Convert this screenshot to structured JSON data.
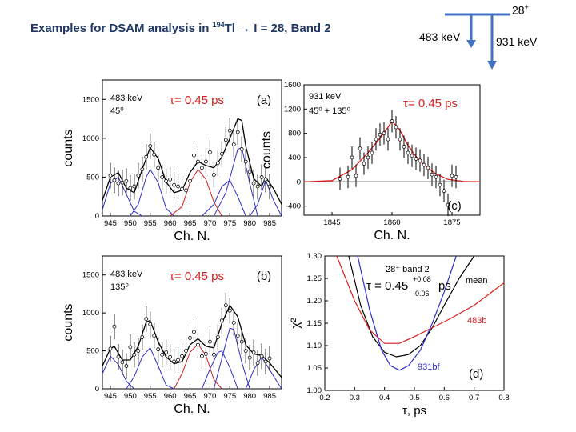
{
  "slide": {
    "title_prefix": "Examples for DSAM analysis in ",
    "title_mass": "194",
    "title_element": "Tl",
    "title_arrow": "→",
    "title_suffix": " I = 28, Band 2",
    "level_spin": "28",
    "level_parity": "+",
    "transition_1": "483 keV",
    "transition_2": "931 keV",
    "colors": {
      "title": "#1f3864",
      "level_scheme": "#4472c4"
    }
  },
  "chart_data": [
    {
      "id": "a",
      "type": "line",
      "panel_label": "(a)",
      "energy_label": "483 keV",
      "angle_label": "45⁰",
      "tau_label": "τ= 0.45 ps",
      "xlabel": "Ch. N.",
      "ylabel": "counts",
      "xlim": [
        943,
        988
      ],
      "ylim": [
        0,
        1750
      ],
      "xticks": [
        945,
        950,
        955,
        960,
        965,
        970,
        975,
        980,
        985
      ],
      "yticks": [
        0,
        500,
        1000,
        1500
      ],
      "points": [
        [
          945,
          520
        ],
        [
          946,
          460
        ],
        [
          947,
          420
        ],
        [
          948,
          430
        ],
        [
          949,
          450
        ],
        [
          950,
          360
        ],
        [
          951,
          380
        ],
        [
          952,
          520
        ],
        [
          953,
          600
        ],
        [
          954,
          760
        ],
        [
          955,
          900
        ],
        [
          956,
          790
        ],
        [
          957,
          620
        ],
        [
          958,
          500
        ],
        [
          959,
          450
        ],
        [
          960,
          470
        ],
        [
          961,
          400
        ],
        [
          962,
          380
        ],
        [
          963,
          350
        ],
        [
          964,
          330
        ],
        [
          965,
          450
        ],
        [
          966,
          780
        ],
        [
          967,
          700
        ],
        [
          968,
          620
        ],
        [
          969,
          700
        ],
        [
          970,
          820
        ],
        [
          971,
          530
        ],
        [
          972,
          680
        ],
        [
          973,
          800
        ],
        [
          974,
          980
        ],
        [
          975,
          1100
        ],
        [
          976,
          920
        ],
        [
          977,
          1080
        ],
        [
          978,
          860
        ],
        [
          979,
          700
        ],
        [
          980,
          570
        ],
        [
          981,
          420
        ],
        [
          982,
          380
        ],
        [
          983,
          500
        ],
        [
          984,
          470
        ],
        [
          985,
          380
        ]
      ],
      "fit_total": [
        [
          943,
          200
        ],
        [
          945,
          500
        ],
        [
          947,
          560
        ],
        [
          949,
          360
        ],
        [
          951,
          300
        ],
        [
          953,
          600
        ],
        [
          955,
          880
        ],
        [
          957,
          740
        ],
        [
          959,
          440
        ],
        [
          961,
          300
        ],
        [
          963,
          330
        ],
        [
          965,
          560
        ],
        [
          967,
          700
        ],
        [
          969,
          650
        ],
        [
          971,
          620
        ],
        [
          973,
          760
        ],
        [
          975,
          1000
        ],
        [
          977,
          1250
        ],
        [
          978,
          1230
        ],
        [
          979,
          900
        ],
        [
          981,
          480
        ],
        [
          983,
          380
        ],
        [
          984,
          500
        ],
        [
          986,
          350
        ],
        [
          988,
          150
        ]
      ],
      "fit_components": [
        {
          "color": "#2e2ec8",
          "points": [
            [
              943,
              80
            ],
            [
              945,
              420
            ],
            [
              947,
              500
            ],
            [
              949,
              280
            ],
            [
              951,
              60
            ],
            [
              953,
              0
            ]
          ]
        },
        {
          "color": "#2e2ec8",
          "points": [
            [
              950,
              0
            ],
            [
              952,
              150
            ],
            [
              954,
              500
            ],
            [
              955,
              600
            ],
            [
              957,
              430
            ],
            [
              959,
              100
            ],
            [
              961,
              0
            ]
          ]
        },
        {
          "color": "#d81e1e",
          "points": [
            [
              960,
              0
            ],
            [
              963,
              120
            ],
            [
              965,
              430
            ],
            [
              967,
              600
            ],
            [
              969,
              470
            ],
            [
              971,
              180
            ],
            [
              973,
              0
            ]
          ]
        },
        {
          "color": "#2e2ec8",
          "points": [
            [
              968,
              0
            ],
            [
              971,
              150
            ],
            [
              973,
              380
            ],
            [
              975,
              460
            ],
            [
              977,
              250
            ],
            [
              979,
              0
            ]
          ]
        },
        {
          "color": "#2e2ec8",
          "points": [
            [
              971,
              0
            ],
            [
              974,
              300
            ],
            [
              977,
              860
            ],
            [
              978,
              880
            ],
            [
              980,
              420
            ],
            [
              982,
              0
            ]
          ]
        },
        {
          "color": "#2e2ec8",
          "points": [
            [
              980,
              0
            ],
            [
              982,
              150
            ],
            [
              984,
              460
            ],
            [
              986,
              200
            ],
            [
              988,
              0
            ]
          ]
        }
      ]
    },
    {
      "id": "c",
      "type": "line",
      "panel_label": "(c)",
      "energy_label": "931 keV",
      "angle_label": "45⁰ + 135⁰",
      "tau_label": "τ= 0.45 ps",
      "xlabel": "Ch. N.",
      "ylabel": "counts",
      "xlim": [
        1838,
        1882
      ],
      "ylim": [
        -550,
        1600
      ],
      "xticks": [
        1845,
        1860,
        1875
      ],
      "yticks": [
        -400,
        0,
        400,
        800,
        1200,
        1600
      ],
      "points": [
        [
          1847,
          50
        ],
        [
          1849,
          80
        ],
        [
          1850,
          400
        ],
        [
          1851,
          100
        ],
        [
          1852,
          550
        ],
        [
          1853,
          300
        ],
        [
          1854,
          400
        ],
        [
          1855,
          480
        ],
        [
          1856,
          700
        ],
        [
          1857,
          780
        ],
        [
          1858,
          800
        ],
        [
          1859,
          700
        ],
        [
          1860,
          1000
        ],
        [
          1861,
          900
        ],
        [
          1862,
          700
        ],
        [
          1863,
          580
        ],
        [
          1864,
          480
        ],
        [
          1865,
          430
        ],
        [
          1866,
          380
        ],
        [
          1867,
          350
        ],
        [
          1868,
          280
        ],
        [
          1869,
          230
        ],
        [
          1870,
          120
        ],
        [
          1871,
          80
        ],
        [
          1872,
          -50
        ],
        [
          1873,
          -150
        ],
        [
          1874,
          -380
        ],
        [
          1875,
          100
        ],
        [
          1876,
          80
        ]
      ],
      "fit_total": [
        [
          1838,
          0
        ],
        [
          1845,
          20
        ],
        [
          1850,
          200
        ],
        [
          1854,
          480
        ],
        [
          1857,
          720
        ],
        [
          1859,
          900
        ],
        [
          1860,
          1000
        ],
        [
          1862,
          850
        ],
        [
          1864,
          600
        ],
        [
          1866,
          420
        ],
        [
          1868,
          280
        ],
        [
          1871,
          130
        ],
        [
          1874,
          40
        ],
        [
          1878,
          5
        ],
        [
          1882,
          0
        ]
      ],
      "fit_components": []
    },
    {
      "id": "b",
      "type": "line",
      "panel_label": "(b)",
      "energy_label": "483 keV",
      "angle_label": "135⁰",
      "tau_label": "τ= 0.45 ps",
      "xlabel": "Ch. N.",
      "ylabel": "counts",
      "xlim": [
        943,
        988
      ],
      "ylim": [
        0,
        1750
      ],
      "xticks": [
        945,
        950,
        955,
        960,
        965,
        970,
        975,
        980,
        985
      ],
      "yticks": [
        0,
        500,
        1000,
        1500
      ],
      "points": [
        [
          945,
          530
        ],
        [
          946,
          820
        ],
        [
          947,
          420
        ],
        [
          948,
          350
        ],
        [
          949,
          300
        ],
        [
          950,
          550
        ],
        [
          951,
          450
        ],
        [
          952,
          500
        ],
        [
          953,
          680
        ],
        [
          954,
          920
        ],
        [
          955,
          850
        ],
        [
          956,
          700
        ],
        [
          957,
          520
        ],
        [
          958,
          450
        ],
        [
          959,
          480
        ],
        [
          960,
          420
        ],
        [
          961,
          360
        ],
        [
          962,
          380
        ],
        [
          963,
          430
        ],
        [
          964,
          500
        ],
        [
          965,
          670
        ],
        [
          966,
          750
        ],
        [
          967,
          580
        ],
        [
          968,
          430
        ],
        [
          969,
          460
        ],
        [
          970,
          620
        ],
        [
          971,
          450
        ],
        [
          972,
          680
        ],
        [
          973,
          900
        ],
        [
          974,
          1100
        ],
        [
          975,
          1030
        ],
        [
          976,
          870
        ],
        [
          977,
          700
        ],
        [
          978,
          620
        ],
        [
          979,
          500
        ],
        [
          980,
          410
        ],
        [
          981,
          480
        ],
        [
          982,
          340
        ],
        [
          983,
          430
        ],
        [
          984,
          360
        ],
        [
          985,
          400
        ]
      ],
      "fit_total": [
        [
          943,
          300
        ],
        [
          945,
          530
        ],
        [
          946,
          560
        ],
        [
          948,
          380
        ],
        [
          950,
          380
        ],
        [
          952,
          560
        ],
        [
          954,
          880
        ],
        [
          955,
          900
        ],
        [
          957,
          620
        ],
        [
          959,
          420
        ],
        [
          961,
          330
        ],
        [
          963,
          360
        ],
        [
          965,
          580
        ],
        [
          967,
          660
        ],
        [
          969,
          560
        ],
        [
          971,
          540
        ],
        [
          973,
          860
        ],
        [
          975,
          1100
        ],
        [
          977,
          950
        ],
        [
          979,
          580
        ],
        [
          981,
          460
        ],
        [
          983,
          440
        ],
        [
          985,
          340
        ],
        [
          988,
          150
        ]
      ],
      "fit_components": [
        {
          "color": "#2e2ec8",
          "points": [
            [
              943,
              200
            ],
            [
              945,
              430
            ],
            [
              947,
              320
            ],
            [
              949,
              100
            ],
            [
              951,
              0
            ]
          ]
        },
        {
          "color": "#2e2ec8",
          "points": [
            [
              949,
              0
            ],
            [
              951,
              160
            ],
            [
              953,
              420
            ],
            [
              955,
              540
            ],
            [
              957,
              300
            ],
            [
              959,
              50
            ],
            [
              961,
              0
            ]
          ]
        },
        {
          "color": "#d81e1e",
          "points": [
            [
              961,
              0
            ],
            [
              963,
              200
            ],
            [
              965,
              480
            ],
            [
              967,
              590
            ],
            [
              969,
              440
            ],
            [
              971,
              120
            ],
            [
              973,
              0
            ]
          ]
        },
        {
          "color": "#2e2ec8",
          "points": [
            [
              968,
              0
            ],
            [
              970,
              260
            ],
            [
              972,
              480
            ],
            [
              973,
              500
            ],
            [
              975,
              280
            ],
            [
              977,
              0
            ]
          ]
        },
        {
          "color": "#2e2ec8",
          "points": [
            [
              971,
              0
            ],
            [
              973,
              400
            ],
            [
              975,
              800
            ],
            [
              976,
              780
            ],
            [
              978,
              350
            ],
            [
              980,
              0
            ]
          ]
        },
        {
          "color": "#2e2ec8",
          "points": [
            [
              979,
              0
            ],
            [
              981,
              250
            ],
            [
              983,
              420
            ],
            [
              985,
              250
            ],
            [
              988,
              0
            ]
          ]
        }
      ]
    },
    {
      "id": "d",
      "type": "line",
      "panel_label": "(d)",
      "title_lines": [
        "28⁺ band 2",
        "τ = 0.45",
        "+0.08",
        "-0.06",
        "ps"
      ],
      "xlabel": "τ, ps",
      "ylabel": "χ²",
      "xlim": [
        0.2,
        0.8
      ],
      "ylim": [
        1.0,
        1.3
      ],
      "xticks": [
        0.2,
        0.3,
        0.4,
        0.5,
        0.6,
        0.7,
        0.8
      ],
      "yticks": [
        1.0,
        1.05,
        1.1,
        1.15,
        1.2,
        1.25,
        1.3
      ],
      "series": [
        {
          "name": "mean",
          "color": "#000000",
          "points": [
            [
              0.28,
              1.3
            ],
            [
              0.32,
              1.19
            ],
            [
              0.36,
              1.12
            ],
            [
              0.4,
              1.085
            ],
            [
              0.44,
              1.075
            ],
            [
              0.48,
              1.08
            ],
            [
              0.52,
              1.1
            ],
            [
              0.56,
              1.14
            ],
            [
              0.6,
              1.19
            ],
            [
              0.65,
              1.25
            ],
            [
              0.7,
              1.3
            ]
          ]
        },
        {
          "name": "483b",
          "color": "#d81e1e",
          "points": [
            [
              0.24,
              1.3
            ],
            [
              0.3,
              1.2
            ],
            [
              0.35,
              1.135
            ],
            [
              0.4,
              1.105
            ],
            [
              0.45,
              1.105
            ],
            [
              0.5,
              1.12
            ],
            [
              0.56,
              1.14
            ],
            [
              0.62,
              1.16
            ],
            [
              0.7,
              1.19
            ],
            [
              0.8,
              1.24
            ]
          ]
        },
        {
          "name": "931bf",
          "color": "#2e2ec8",
          "points": [
            [
              0.31,
              1.3
            ],
            [
              0.35,
              1.18
            ],
            [
              0.39,
              1.09
            ],
            [
              0.42,
              1.055
            ],
            [
              0.45,
              1.045
            ],
            [
              0.48,
              1.055
            ],
            [
              0.52,
              1.09
            ],
            [
              0.56,
              1.15
            ],
            [
              0.6,
              1.22
            ],
            [
              0.64,
              1.3
            ]
          ]
        }
      ]
    }
  ]
}
